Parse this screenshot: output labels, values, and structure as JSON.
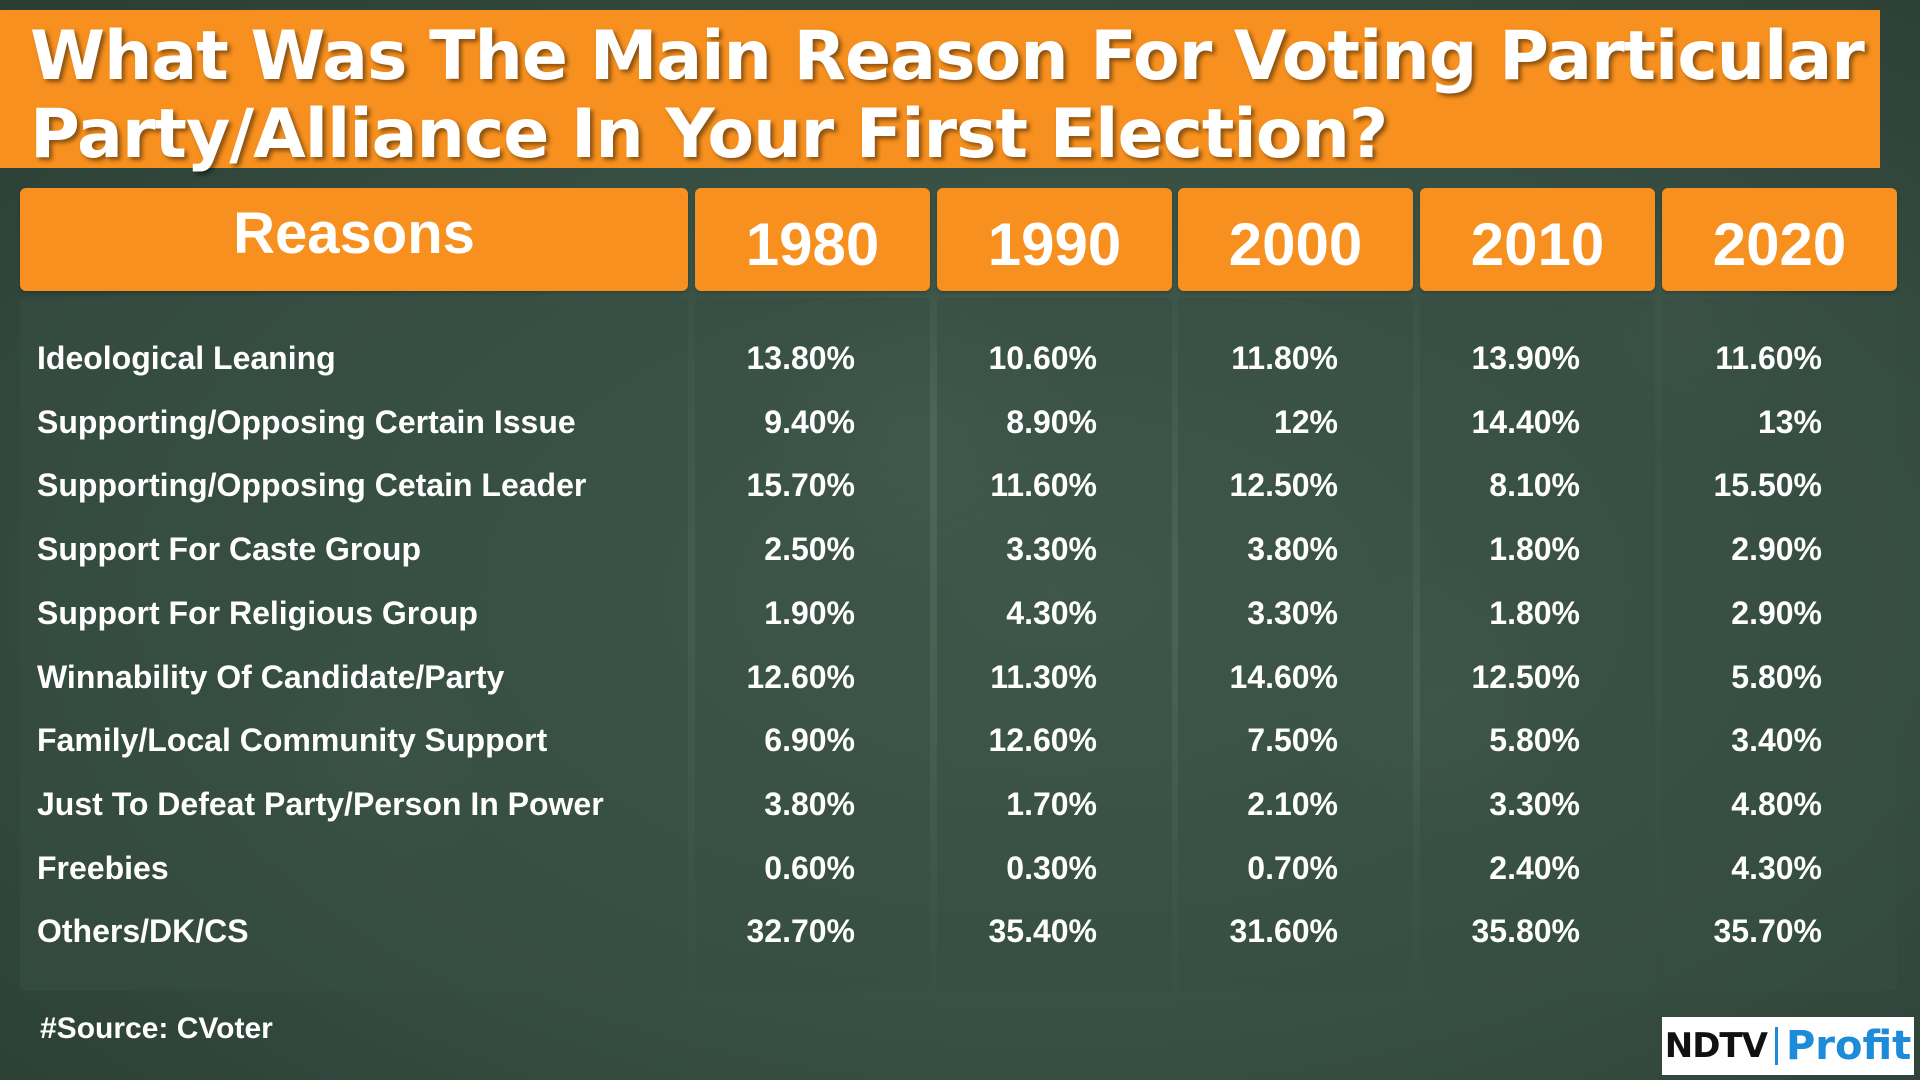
{
  "title": "What Was The Main Reason For Voting Particular Party/Alliance In Your First Election?",
  "source": "#Source: CVoter",
  "logo": {
    "left": "NDTV",
    "right": "Profit"
  },
  "colors": {
    "orange": "#f7901e",
    "logo_blue": "#1d8cd8"
  },
  "chart_data": {
    "type": "table",
    "title": "What Was The Main Reason For Voting Particular Party/Alliance In Your First Election?",
    "header_label": "Reasons",
    "columns": [
      "1980",
      "1990",
      "2000",
      "2010",
      "2020"
    ],
    "rows": [
      {
        "label": "Ideological Leaning",
        "values": [
          "13.80%",
          "10.60%",
          "11.80%",
          "13.90%",
          "11.60%"
        ]
      },
      {
        "label": "Supporting/Opposing Certain Issue",
        "values": [
          "9.40%",
          "8.90%",
          "12%",
          "14.40%",
          "13%"
        ]
      },
      {
        "label": "Supporting/Opposing Cetain Leader",
        "values": [
          "15.70%",
          "11.60%",
          "12.50%",
          "8.10%",
          "15.50%"
        ]
      },
      {
        "label": "Support For Caste Group",
        "values": [
          "2.50%",
          "3.30%",
          "3.80%",
          "1.80%",
          "2.90%"
        ]
      },
      {
        "label": "Support For Religious Group",
        "values": [
          "1.90%",
          "4.30%",
          "3.30%",
          "1.80%",
          "2.90%"
        ]
      },
      {
        "label": "Winnability Of Candidate/Party",
        "values": [
          "12.60%",
          "11.30%",
          "14.60%",
          "12.50%",
          "5.80%"
        ]
      },
      {
        "label": "Family/Local Community Support",
        "values": [
          "6.90%",
          "12.60%",
          "7.50%",
          "5.80%",
          "3.40%"
        ]
      },
      {
        "label": "Just To Defeat Party/Person In Power",
        "values": [
          "3.80%",
          "1.70%",
          "2.10%",
          "3.30%",
          "4.80%"
        ]
      },
      {
        "label": "Freebies",
        "values": [
          "0.60%",
          "0.30%",
          "0.70%",
          "2.40%",
          "4.30%"
        ]
      },
      {
        "label": "Others/DK/CS",
        "values": [
          "32.70%",
          "35.40%",
          "31.60%",
          "35.80%",
          "35.70%"
        ]
      }
    ],
    "source": "#Source: CVoter"
  }
}
